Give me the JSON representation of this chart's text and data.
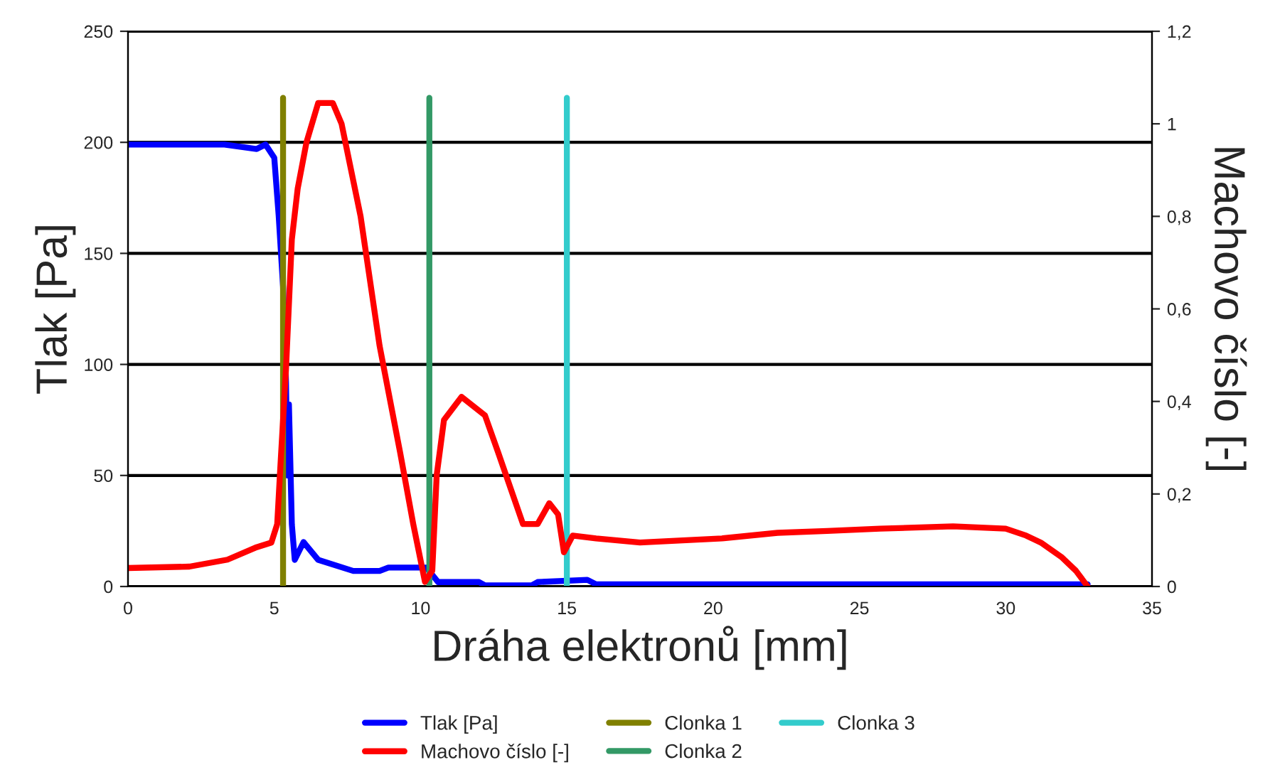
{
  "chart_data": {
    "type": "line",
    "xlabel": "Dráha elektronů [mm]",
    "ylabel": "Tlak [Pa]",
    "y2label": "Machovo číslo [-]",
    "xlim": [
      0,
      35
    ],
    "xticks": [
      0,
      5,
      10,
      15,
      20,
      25,
      30,
      35
    ],
    "ylim": [
      0,
      250
    ],
    "yticks": [
      0,
      50,
      100,
      150,
      200,
      250
    ],
    "y2lim": [
      0,
      1.2
    ],
    "y2ticks": [
      0,
      {
        "value": 0.2,
        "label": "0,2"
      },
      {
        "value": 0.4,
        "label": "0,4"
      },
      {
        "value": 0.6,
        "label": "0,6"
      },
      {
        "value": 0.8,
        "label": "0,8"
      },
      1,
      {
        "value": 1.2,
        "label": "1,2"
      }
    ],
    "grid": "y",
    "legend": "bottom",
    "marker": "none",
    "line_style": "solid",
    "series": [
      {
        "name": "Tlak [Pa]",
        "color": "#0000ff",
        "x": [
          0,
          3.3,
          4.4,
          4.7,
          5.0,
          5.15,
          5.3,
          5.4,
          5.45,
          5.5,
          5.6,
          5.7,
          6.0,
          6.5,
          7.7,
          8.6,
          8.9,
          10.2,
          10.6,
          12.0,
          12.2,
          13.8,
          14.0,
          15.7,
          16.0,
          32.8
        ],
        "values": [
          199,
          199,
          197,
          199,
          193,
          167,
          135,
          92,
          50,
          82,
          28,
          12,
          20,
          12,
          7,
          7,
          8.5,
          8.5,
          2,
          2,
          0.5,
          0.5,
          2,
          3,
          1,
          1
        ]
      },
      {
        "name": "Machovo číslo [-]",
        "color": "#ff0000",
        "axis": "y2",
        "x": [
          0,
          2.1,
          3.4,
          4.4,
          4.9,
          5.1,
          5.2,
          5.4,
          5.6,
          5.8,
          6.1,
          6.5,
          7.0,
          7.3,
          7.95,
          8.6,
          9.3,
          9.75,
          10.15,
          10.4,
          10.55,
          10.8,
          11.4,
          12.2,
          12.65,
          13.5,
          14.0,
          14.4,
          14.7,
          14.9,
          15.2,
          16.0,
          17.5,
          20.3,
          22.2,
          23.9,
          25.7,
          28.2,
          30.0,
          30.7,
          31.2,
          31.9,
          32.4,
          32.8
        ],
        "values": [
          0.04,
          0.043,
          0.058,
          0.085,
          0.095,
          0.135,
          0.25,
          0.47,
          0.75,
          0.86,
          0.96,
          1.045,
          1.045,
          1.0,
          0.8,
          0.52,
          0.29,
          0.135,
          0.01,
          0.034,
          0.24,
          0.36,
          0.41,
          0.37,
          0.29,
          0.135,
          0.135,
          0.18,
          0.156,
          0.074,
          0.11,
          0.104,
          0.095,
          0.104,
          0.116,
          0.12,
          0.125,
          0.13,
          0.125,
          0.11,
          0.095,
          0.064,
          0.034,
          0.0
        ]
      },
      {
        "name": "Clonka 1",
        "color": "#808000",
        "x": [
          5.3,
          5.3
        ],
        "values": [
          0,
          220
        ]
      },
      {
        "name": "Clonka 2",
        "color": "#339966",
        "x": [
          10.3,
          10.3
        ],
        "values": [
          0,
          220
        ]
      },
      {
        "name": "Clonka 3",
        "color": "#33cccc",
        "x": [
          15.0,
          15.0
        ],
        "values": [
          0,
          220
        ]
      }
    ]
  }
}
